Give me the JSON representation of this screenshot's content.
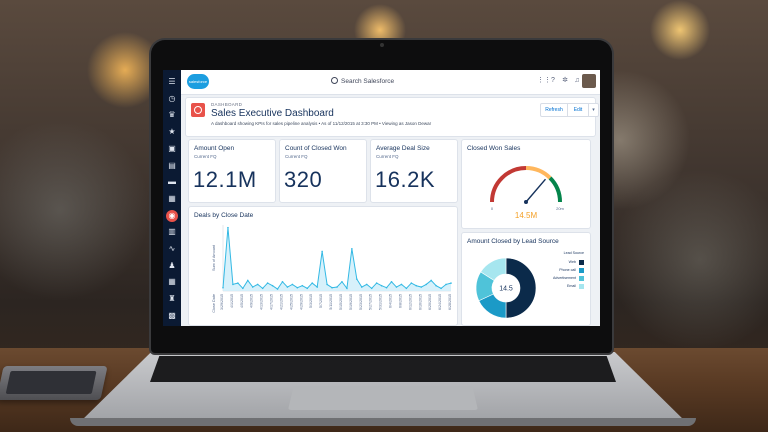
{
  "topbar": {
    "logo_text": "salesforce",
    "search_placeholder": "Search Salesforce",
    "icons": [
      "grid-icon",
      "help-icon",
      "gear-icon",
      "bell-icon"
    ]
  },
  "sidebar": {
    "items": [
      {
        "icon": "menu-icon",
        "glyph": "☰"
      },
      {
        "icon": "clock-icon",
        "glyph": "◷"
      },
      {
        "icon": "crown-icon",
        "glyph": "♛"
      },
      {
        "icon": "star-icon",
        "glyph": "★"
      },
      {
        "icon": "inbox-icon",
        "glyph": "▣"
      },
      {
        "icon": "document-icon",
        "glyph": "▤"
      },
      {
        "icon": "folder-icon",
        "glyph": "▬"
      },
      {
        "icon": "chart-icon",
        "glyph": "▦"
      },
      {
        "icon": "dashboard-icon",
        "glyph": "◉"
      },
      {
        "icon": "calendar-icon",
        "glyph": "▥"
      },
      {
        "icon": "pulse-icon",
        "glyph": "∿"
      },
      {
        "icon": "people-icon",
        "glyph": "♟"
      },
      {
        "icon": "table-icon",
        "glyph": "▦"
      },
      {
        "icon": "contacts-icon",
        "glyph": "♜"
      },
      {
        "icon": "case-icon",
        "glyph": "▩"
      }
    ]
  },
  "header": {
    "breadcrumb": "DASHBOARD",
    "title": "Sales Executive Dashboard",
    "subtitle": "A dashboard showing KPIs for sales pipeline analysis  •  As of 11/12/2015 at 3:30 PM  •  Viewing as Jason Dewar",
    "buttons": {
      "refresh": "Refresh",
      "edit": "Edit",
      "more": "▾"
    }
  },
  "metrics": [
    {
      "title": "Amount Open",
      "sub": "Current FQ",
      "value": "12.1M"
    },
    {
      "title": "Count of Closed Won",
      "sub": "Current FQ",
      "value": "320"
    },
    {
      "title": "Average Deal Size",
      "sub": "Current FQ",
      "value": "16.2K"
    }
  ],
  "closed_won": {
    "title": "Closed Won Sales",
    "value": "14.5M",
    "min_label": "0",
    "max_label": "20m",
    "level": 0.725,
    "colors": {
      "low": "#c23934",
      "mid": "#ffb75d",
      "high": "#04844b"
    }
  },
  "lead_source": {
    "title": "Amount Closed by Lead Source",
    "center_value": "14.5",
    "legend_title": "Lead Source",
    "colors": {
      "accent": "#0070d2"
    }
  },
  "deals_title": "Deals by Close Date",
  "chart_data": [
    {
      "type": "area",
      "title": "Deals by Close Date",
      "xlabel": "Close Date",
      "ylabel": "Sum of Amount",
      "categories": [
        "3/29/2015",
        "3/30/2015",
        "4/1/2015",
        "4/3/2015",
        "4/5/2015",
        "4/7/2015",
        "4/9/2015",
        "4/11/2015",
        "4/13/2015",
        "4/15/2015",
        "4/17/2015",
        "4/19/2015",
        "4/21/2015",
        "4/23/2015",
        "4/25/2015",
        "4/27/2015",
        "4/29/2015",
        "5/1/2015",
        "5/3/2015",
        "5/5/2015",
        "5/7/2015",
        "5/9/2015",
        "5/11/2015",
        "5/13/2015",
        "5/15/2015",
        "5/17/2015",
        "5/19/2015",
        "5/21/2015",
        "5/23/2015",
        "5/25/2015",
        "5/27/2015",
        "5/29/2015",
        "5/31/2015",
        "6/2/2015",
        "6/4/2015",
        "6/6/2015",
        "6/8/2015",
        "6/10/2015",
        "6/12/2015",
        "6/14/2015",
        "6/16/2015",
        "6/18/2015",
        "6/20/2015",
        "6/22/2015",
        "6/24/2015",
        "6/26/2015",
        "6/28/2015"
      ],
      "values": [
        5,
        96,
        10,
        12,
        4,
        16,
        6,
        10,
        4,
        12,
        8,
        3,
        14,
        6,
        10,
        5,
        8,
        4,
        12,
        6,
        60,
        10,
        5,
        6,
        14,
        4,
        64,
        18,
        6,
        10,
        4,
        12,
        8,
        5,
        14,
        6,
        10,
        4,
        12,
        8,
        6,
        10,
        16,
        8,
        4,
        10,
        12
      ],
      "ylim": [
        0,
        100
      ],
      "colors": {
        "line": "#33b9e4",
        "fill": "#cdeefa"
      }
    },
    {
      "type": "pie",
      "title": "Amount Closed by Lead Source",
      "categories": [
        "Web",
        "Phone call",
        "Advertisement",
        "Email"
      ],
      "values": [
        50,
        18,
        16,
        16
      ],
      "colors": [
        "#0b2a4a",
        "#1b9ac7",
        "#4fc3d9",
        "#a6e6ef"
      ]
    }
  ]
}
